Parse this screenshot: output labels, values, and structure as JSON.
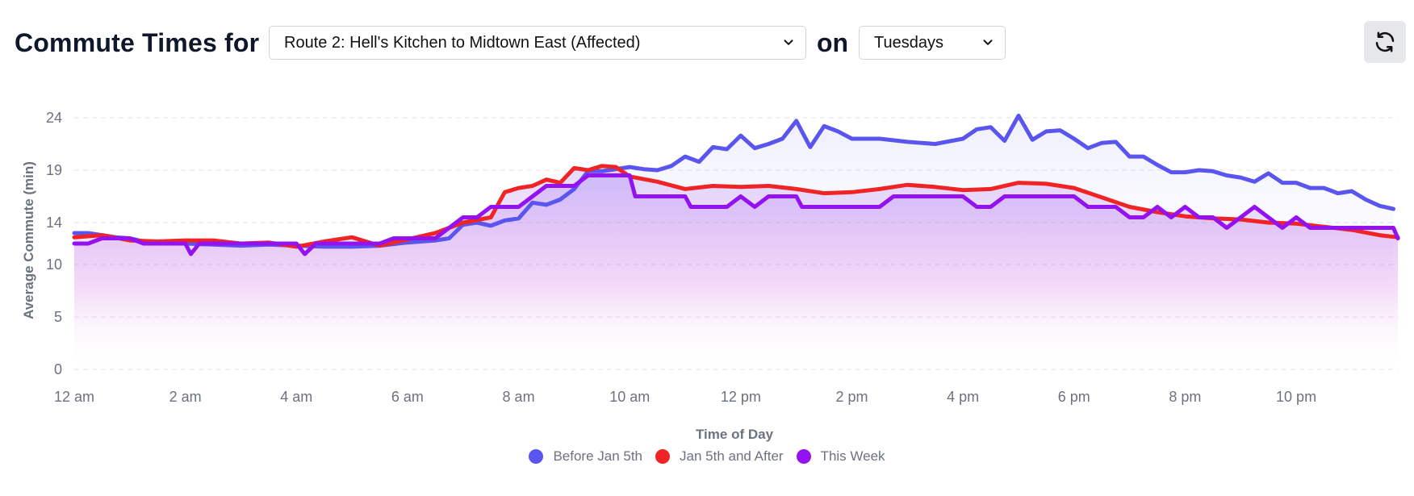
{
  "header": {
    "title": "Commute Times for",
    "route_select": "Route 2: Hell's Kitchen to Midtown East (Affected)",
    "on_label": "on",
    "day_select": "Tuesdays",
    "refresh_icon": "refresh-icon"
  },
  "colors": {
    "before": "#5b55f0",
    "after": "#f02424",
    "this_week": "#9412f0",
    "grid": "#e5e7eb",
    "tick": "#6b7280"
  },
  "chart_data": {
    "type": "line",
    "xlabel": "Time of Day",
    "ylabel": "Average Commute (min)",
    "ylim": [
      0,
      25
    ],
    "y_ticks": [
      0,
      5,
      10,
      14,
      19,
      24
    ],
    "x_range_hours": [
      0,
      23.83
    ],
    "x_ticks": [
      {
        "hour": 0,
        "label": "12 am"
      },
      {
        "hour": 2,
        "label": "2 am"
      },
      {
        "hour": 4,
        "label": "4 am"
      },
      {
        "hour": 6,
        "label": "6 am"
      },
      {
        "hour": 8,
        "label": "8 am"
      },
      {
        "hour": 10,
        "label": "10 am"
      },
      {
        "hour": 12,
        "label": "12 pm"
      },
      {
        "hour": 14,
        "label": "2 pm"
      },
      {
        "hour": 16,
        "label": "4 pm"
      },
      {
        "hour": 18,
        "label": "6 pm"
      },
      {
        "hour": 20,
        "label": "8 pm"
      },
      {
        "hour": 22,
        "label": "10 pm"
      }
    ],
    "grid": true,
    "legend_position": "bottom",
    "series": [
      {
        "name": "Before Jan 5th",
        "color": "#5b55f0",
        "points": [
          [
            0,
            13.0
          ],
          [
            0.25,
            13.0
          ],
          [
            0.5,
            12.8
          ],
          [
            0.75,
            12.6
          ],
          [
            1.0,
            12.5
          ],
          [
            1.25,
            12.2
          ],
          [
            1.5,
            12.0
          ],
          [
            2.0,
            12.0
          ],
          [
            2.5,
            11.9
          ],
          [
            3.0,
            11.8
          ],
          [
            3.5,
            11.9
          ],
          [
            4.0,
            11.8
          ],
          [
            4.5,
            11.7
          ],
          [
            5.0,
            11.7
          ],
          [
            5.5,
            11.8
          ],
          [
            6.0,
            12.1
          ],
          [
            6.5,
            12.3
          ],
          [
            6.75,
            12.5
          ],
          [
            7.0,
            13.8
          ],
          [
            7.25,
            14.0
          ],
          [
            7.5,
            13.7
          ],
          [
            7.75,
            14.2
          ],
          [
            8.0,
            14.4
          ],
          [
            8.25,
            15.9
          ],
          [
            8.5,
            15.7
          ],
          [
            8.75,
            16.2
          ],
          [
            9.0,
            17.2
          ],
          [
            9.25,
            18.9
          ],
          [
            9.5,
            18.9
          ],
          [
            9.75,
            19.1
          ],
          [
            10.0,
            19.3
          ],
          [
            10.25,
            19.1
          ],
          [
            10.5,
            19.0
          ],
          [
            10.75,
            19.4
          ],
          [
            11.0,
            20.3
          ],
          [
            11.25,
            19.8
          ],
          [
            11.5,
            21.2
          ],
          [
            11.75,
            21.0
          ],
          [
            12.0,
            22.3
          ],
          [
            12.25,
            21.1
          ],
          [
            12.5,
            21.5
          ],
          [
            12.75,
            22.0
          ],
          [
            13.0,
            23.7
          ],
          [
            13.25,
            21.2
          ],
          [
            13.5,
            23.2
          ],
          [
            13.75,
            22.7
          ],
          [
            14.0,
            22.0
          ],
          [
            14.5,
            22.0
          ],
          [
            15.0,
            21.7
          ],
          [
            15.5,
            21.5
          ],
          [
            16.0,
            22.0
          ],
          [
            16.25,
            22.9
          ],
          [
            16.5,
            23.1
          ],
          [
            16.75,
            21.8
          ],
          [
            17.0,
            24.2
          ],
          [
            17.25,
            21.9
          ],
          [
            17.5,
            22.7
          ],
          [
            17.75,
            22.8
          ],
          [
            18.0,
            22.0
          ],
          [
            18.25,
            21.1
          ],
          [
            18.5,
            21.6
          ],
          [
            18.75,
            21.7
          ],
          [
            19.0,
            20.3
          ],
          [
            19.25,
            20.3
          ],
          [
            19.5,
            19.5
          ],
          [
            19.75,
            18.8
          ],
          [
            20.0,
            18.8
          ],
          [
            20.25,
            19.0
          ],
          [
            20.5,
            18.9
          ],
          [
            20.75,
            18.5
          ],
          [
            21.0,
            18.3
          ],
          [
            21.25,
            17.9
          ],
          [
            21.5,
            18.7
          ],
          [
            21.75,
            17.8
          ],
          [
            22.0,
            17.8
          ],
          [
            22.25,
            17.3
          ],
          [
            22.5,
            17.3
          ],
          [
            22.75,
            16.8
          ],
          [
            23.0,
            17.0
          ],
          [
            23.25,
            16.2
          ],
          [
            23.5,
            15.6
          ],
          [
            23.75,
            15.3
          ]
        ]
      },
      {
        "name": "Jan 5th and After",
        "color": "#f02424",
        "points": [
          [
            0,
            12.6
          ],
          [
            0.5,
            12.8
          ],
          [
            1.0,
            12.3
          ],
          [
            1.5,
            12.2
          ],
          [
            2.0,
            12.3
          ],
          [
            2.5,
            12.3
          ],
          [
            3.0,
            12.0
          ],
          [
            3.5,
            12.1
          ],
          [
            4.0,
            11.7
          ],
          [
            4.5,
            12.2
          ],
          [
            5.0,
            12.6
          ],
          [
            5.5,
            11.8
          ],
          [
            6.0,
            12.4
          ],
          [
            6.5,
            13.0
          ],
          [
            7.0,
            14.0
          ],
          [
            7.5,
            14.5
          ],
          [
            7.75,
            16.9
          ],
          [
            8.0,
            17.3
          ],
          [
            8.25,
            17.5
          ],
          [
            8.5,
            18.1
          ],
          [
            8.75,
            17.8
          ],
          [
            9.0,
            19.2
          ],
          [
            9.25,
            19.0
          ],
          [
            9.5,
            19.4
          ],
          [
            9.75,
            19.3
          ],
          [
            10.0,
            18.4
          ],
          [
            10.5,
            17.9
          ],
          [
            11.0,
            17.2
          ],
          [
            11.5,
            17.5
          ],
          [
            12.0,
            17.4
          ],
          [
            12.5,
            17.5
          ],
          [
            13.0,
            17.2
          ],
          [
            13.5,
            16.8
          ],
          [
            14.0,
            16.9
          ],
          [
            14.5,
            17.2
          ],
          [
            15.0,
            17.6
          ],
          [
            15.5,
            17.4
          ],
          [
            16.0,
            17.1
          ],
          [
            16.5,
            17.2
          ],
          [
            17.0,
            17.8
          ],
          [
            17.5,
            17.7
          ],
          [
            18.0,
            17.3
          ],
          [
            18.5,
            16.4
          ],
          [
            19.0,
            15.5
          ],
          [
            19.5,
            15.0
          ],
          [
            20.0,
            14.6
          ],
          [
            20.5,
            14.4
          ],
          [
            21.0,
            14.3
          ],
          [
            21.5,
            14.0
          ],
          [
            22.0,
            13.9
          ],
          [
            22.5,
            13.6
          ],
          [
            23.0,
            13.3
          ],
          [
            23.5,
            12.8
          ],
          [
            23.83,
            12.6
          ]
        ]
      },
      {
        "name": "This Week",
        "color": "#9412f0",
        "points": [
          [
            0,
            12.0
          ],
          [
            0.25,
            12.0
          ],
          [
            0.5,
            12.5
          ],
          [
            1.0,
            12.5
          ],
          [
            1.25,
            12.0
          ],
          [
            1.5,
            12.0
          ],
          [
            2.0,
            12.0
          ],
          [
            2.1,
            11.0
          ],
          [
            2.25,
            12.0
          ],
          [
            3.0,
            12.0
          ],
          [
            4.0,
            12.0
          ],
          [
            4.15,
            11.0
          ],
          [
            4.35,
            12.0
          ],
          [
            5.5,
            12.0
          ],
          [
            5.75,
            12.5
          ],
          [
            6.5,
            12.5
          ],
          [
            6.75,
            13.5
          ],
          [
            7.0,
            14.5
          ],
          [
            7.25,
            14.5
          ],
          [
            7.5,
            15.5
          ],
          [
            8.0,
            15.5
          ],
          [
            8.25,
            16.5
          ],
          [
            8.5,
            17.5
          ],
          [
            9.0,
            17.5
          ],
          [
            9.25,
            18.5
          ],
          [
            9.5,
            18.5
          ],
          [
            10.0,
            18.5
          ],
          [
            10.1,
            16.5
          ],
          [
            11.0,
            16.5
          ],
          [
            11.1,
            15.5
          ],
          [
            11.75,
            15.5
          ],
          [
            12.0,
            16.5
          ],
          [
            12.25,
            15.5
          ],
          [
            12.5,
            16.5
          ],
          [
            13.0,
            16.5
          ],
          [
            13.1,
            15.5
          ],
          [
            14.5,
            15.5
          ],
          [
            14.75,
            16.5
          ],
          [
            16.0,
            16.5
          ],
          [
            16.25,
            15.5
          ],
          [
            16.5,
            15.5
          ],
          [
            16.75,
            16.5
          ],
          [
            18.0,
            16.5
          ],
          [
            18.25,
            15.5
          ],
          [
            18.75,
            15.5
          ],
          [
            19.0,
            14.5
          ],
          [
            19.25,
            14.5
          ],
          [
            19.5,
            15.5
          ],
          [
            19.75,
            14.5
          ],
          [
            20.0,
            15.5
          ],
          [
            20.25,
            14.5
          ],
          [
            20.5,
            14.5
          ],
          [
            20.75,
            13.5
          ],
          [
            21.0,
            14.5
          ],
          [
            21.25,
            15.5
          ],
          [
            21.5,
            14.5
          ],
          [
            21.75,
            13.5
          ],
          [
            22.0,
            14.5
          ],
          [
            22.25,
            13.5
          ],
          [
            23.75,
            13.5
          ],
          [
            23.83,
            12.5
          ]
        ]
      }
    ]
  }
}
